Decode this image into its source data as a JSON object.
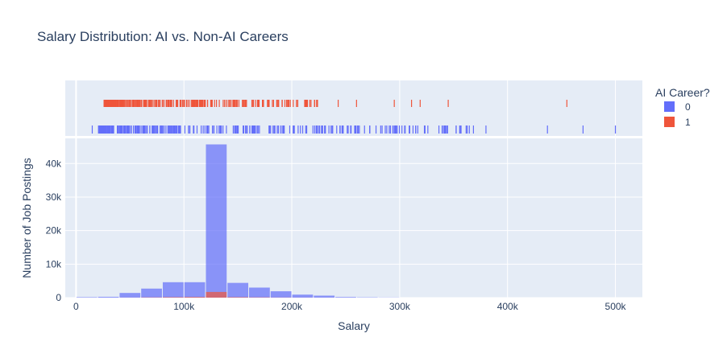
{
  "chart_data": {
    "type": "histogram",
    "title": "Salary Distribution: AI vs. Non-AI Careers",
    "xlabel": "Salary",
    "ylabel": "Number of Job Postings",
    "xlim": [
      -10000,
      525000
    ],
    "ylim": [
      0,
      47500
    ],
    "x_ticks": [
      {
        "value": 0,
        "label": "0"
      },
      {
        "value": 100000,
        "label": "100k"
      },
      {
        "value": 200000,
        "label": "200k"
      },
      {
        "value": 300000,
        "label": "300k"
      },
      {
        "value": 400000,
        "label": "400k"
      },
      {
        "value": 500000,
        "label": "500k"
      }
    ],
    "y_ticks": [
      {
        "value": 0,
        "label": "0"
      },
      {
        "value": 10000,
        "label": "10k"
      },
      {
        "value": 20000,
        "label": "20k"
      },
      {
        "value": 30000,
        "label": "30k"
      },
      {
        "value": 40000,
        "label": "40k"
      }
    ],
    "bin_width": 20000,
    "bin_starts": [
      0,
      20000,
      40000,
      60000,
      80000,
      100000,
      120000,
      140000,
      160000,
      180000,
      200000,
      220000,
      240000,
      260000,
      280000
    ],
    "series": [
      {
        "name": "0",
        "color": "#636efa",
        "counts": [
          150,
          250,
          1400,
          2700,
          4600,
          4600,
          45700,
          4400,
          3000,
          1900,
          900,
          600,
          200,
          100,
          50
        ]
      },
      {
        "name": "1",
        "color": "#ef553b",
        "counts": [
          0,
          0,
          20,
          80,
          150,
          200,
          1700,
          150,
          90,
          40,
          15,
          5,
          0,
          0,
          0
        ]
      }
    ],
    "rug": [
      {
        "series": "1",
        "range": [
          26000,
          225000
        ],
        "outliers": [
          243000,
          260000,
          295000,
          311000,
          319000,
          345000,
          455000
        ]
      },
      {
        "series": "0",
        "range": [
          21000,
          370000
        ],
        "outliers": [
          15000,
          380000,
          437000,
          470000,
          500000
        ]
      }
    ],
    "legend": {
      "title": "AI Career?",
      "placement": "right",
      "items": [
        "0",
        "1"
      ]
    },
    "grid": true
  }
}
